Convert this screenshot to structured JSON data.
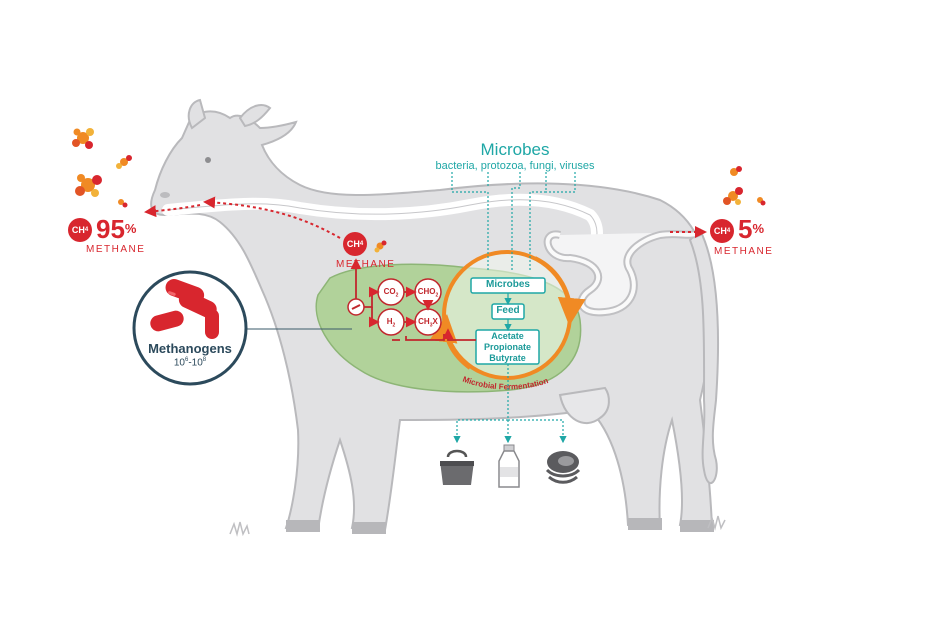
{
  "microbes": {
    "title": "Microbes",
    "subtitle": "bacteria, protozoa, fungi, viruses"
  },
  "emissions": {
    "mouth": {
      "formula": "CH",
      "formula_sub": "4",
      "value": "95",
      "unit": "%",
      "label": "METHANE"
    },
    "rear": {
      "formula": "CH",
      "formula_sub": "4",
      "value": "5",
      "unit": "%",
      "label": "METHANE"
    },
    "rumen": {
      "formula": "CH",
      "formula_sub": "4",
      "label": "METHANE"
    }
  },
  "methanogens": {
    "label": "Methanogens",
    "count_base1": "10",
    "count_exp1": "6",
    "count_sep": "-",
    "count_base2": "10",
    "count_exp2": "8"
  },
  "gases": {
    "co2": {
      "main": "CO",
      "sub": "2"
    },
    "cho2": {
      "main": "CHO",
      "sub": "2"
    },
    "h2": {
      "main": "H",
      "sub": "2"
    },
    "ch3x": {
      "main": "CH",
      "sub": "3",
      "tail": "X"
    }
  },
  "cycle": {
    "microbes_box": "Microbes",
    "feed_box": "Feed",
    "products": [
      "Acetate",
      "Propionate",
      "Butyrate"
    ],
    "arc_label": "Microbial Fermentation"
  },
  "outputs": [
    "bag-icon",
    "milk-bottle-icon",
    "meat-icon"
  ],
  "colors": {
    "methane_red": "#d8262e",
    "teal": "#1fa7a6",
    "rumen_green": "#a9d08e",
    "cycle_orange": "#f08a24",
    "cow_gray": "#d9d9db"
  }
}
